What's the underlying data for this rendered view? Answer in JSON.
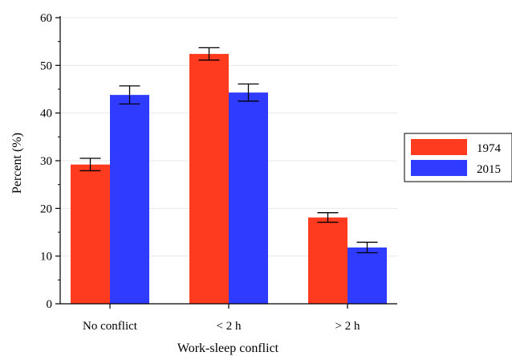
{
  "chart_data": {
    "type": "bar",
    "title": "",
    "xlabel": "Work-sleep conflict",
    "ylabel": "Percent (%)",
    "categories": [
      "No conflict",
      "< 2 h",
      "> 2 h"
    ],
    "ylim": [
      0,
      60
    ],
    "yticks": [
      0,
      10,
      20,
      30,
      40,
      50,
      60
    ],
    "grid": true,
    "legend_position": "right",
    "series": [
      {
        "name": "1974",
        "color": "#ff3b1f",
        "values": [
          29.2,
          52.4,
          18.1
        ],
        "error": [
          1.3,
          1.3,
          1.0
        ]
      },
      {
        "name": "2015",
        "color": "#2f3bff",
        "values": [
          43.8,
          44.3,
          11.8
        ],
        "error": [
          1.9,
          1.8,
          1.1
        ]
      }
    ]
  }
}
